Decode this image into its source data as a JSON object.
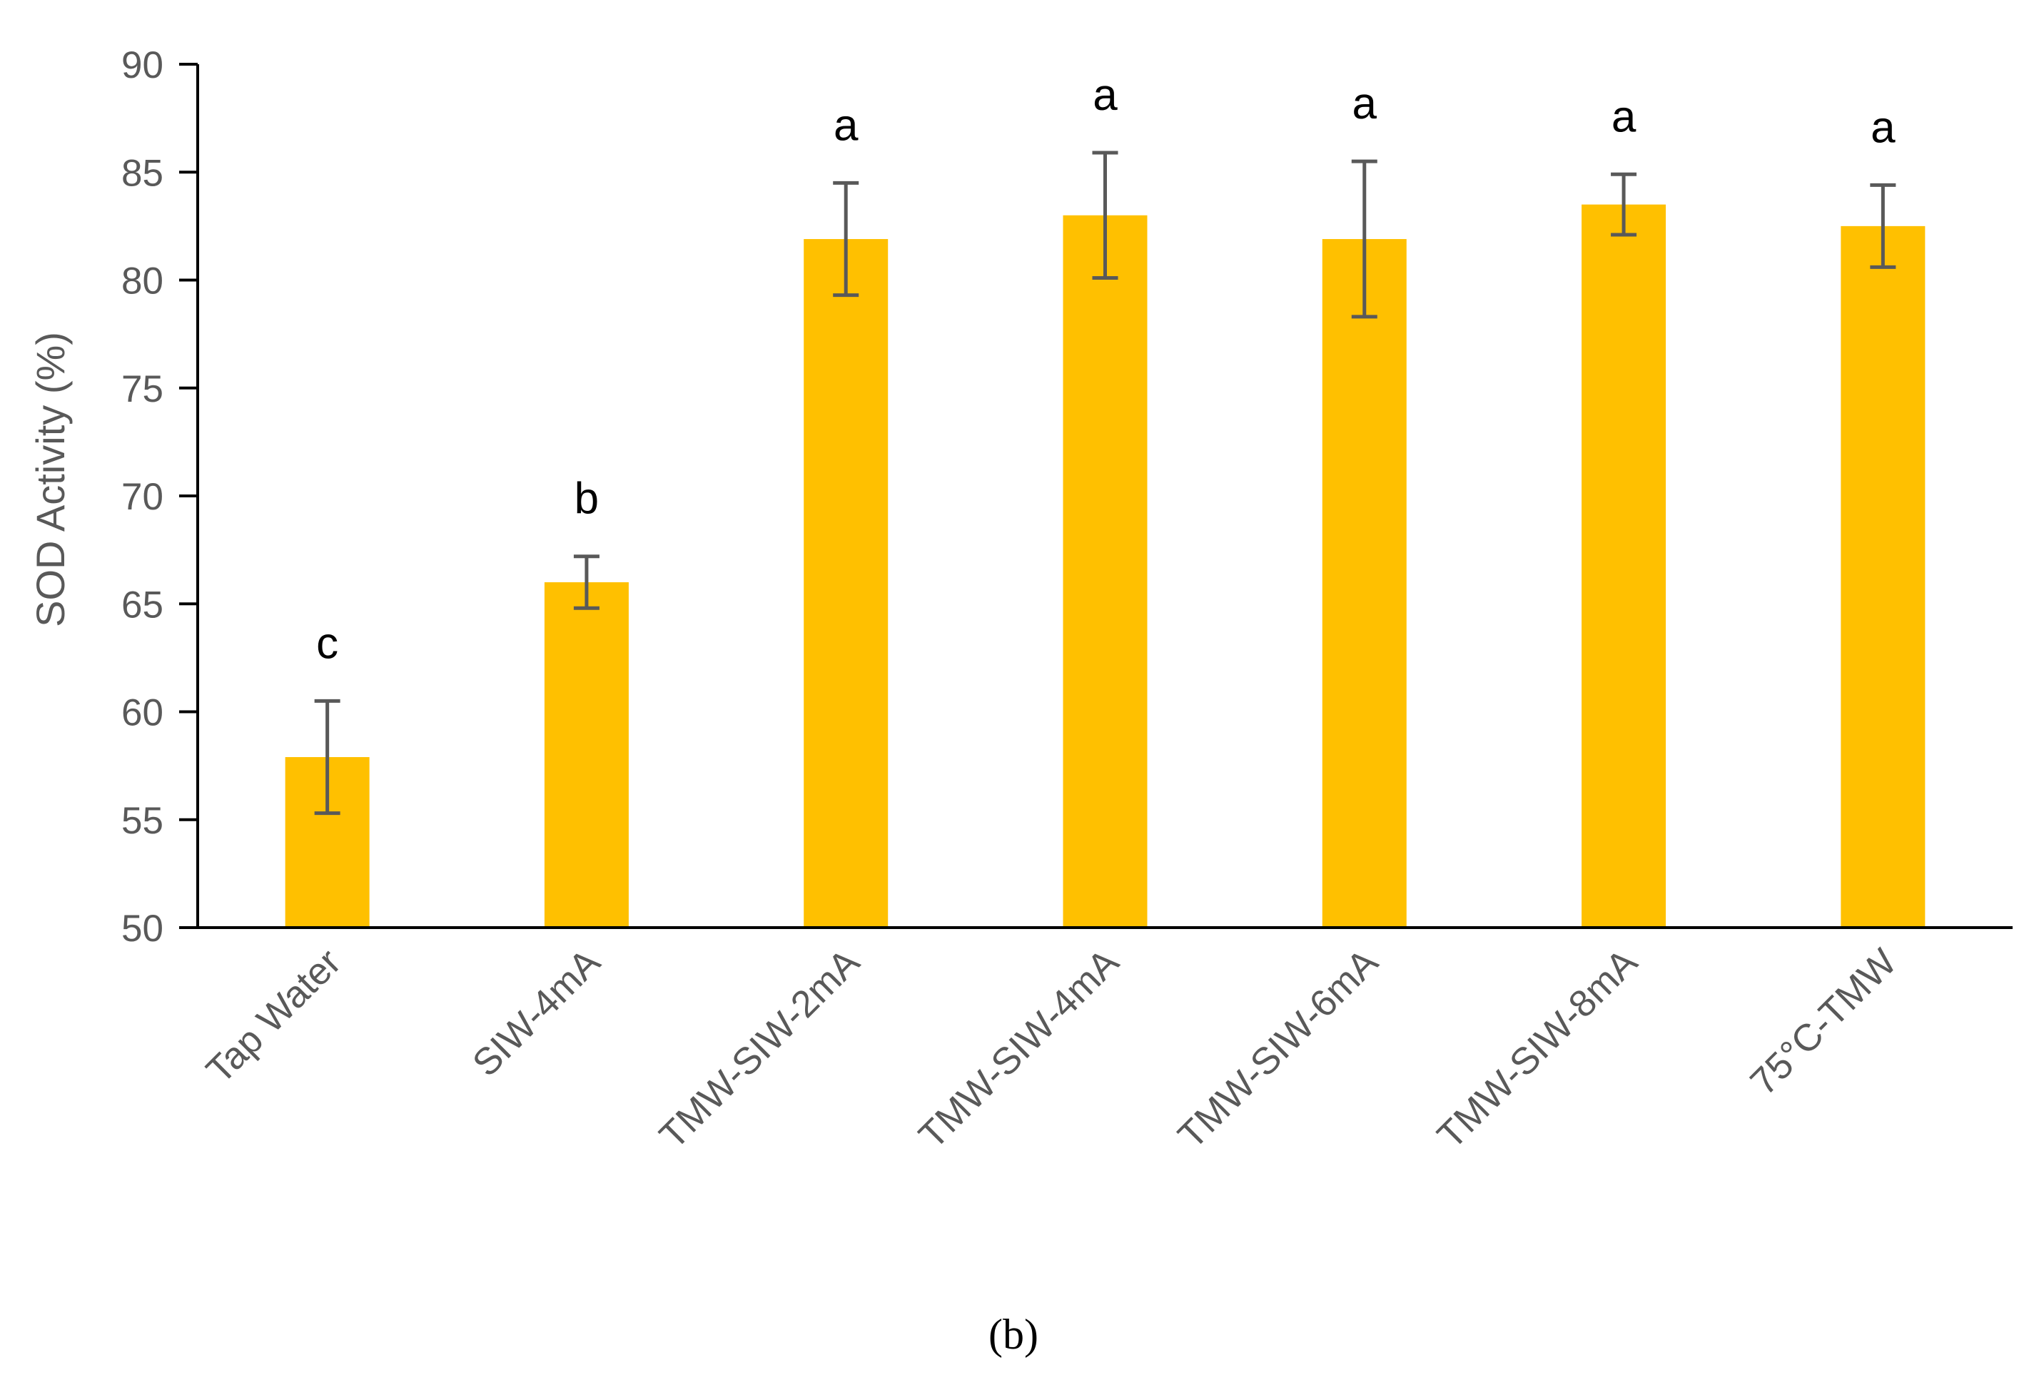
{
  "chart_data": {
    "type": "bar",
    "title": "",
    "xlabel": "",
    "ylabel": "SOD Activity (%)",
    "ylim": [
      50,
      90
    ],
    "yticks": [
      50,
      55,
      60,
      65,
      70,
      75,
      80,
      85,
      90
    ],
    "grid": false,
    "legend": "none",
    "categories": [
      "Tap Water",
      "SIW-4mA",
      "TMW-SIW-2mA",
      "TMW-SIW-4mA",
      "TMW-SIW-6mA",
      "TMW-SIW-8mA",
      "75°C-TMW"
    ],
    "series": [
      {
        "name": "SOD Activity",
        "color": "#FFC000",
        "values": [
          57.9,
          66.0,
          81.9,
          83.0,
          81.9,
          83.5,
          82.5
        ],
        "errors": [
          2.6,
          1.2,
          2.6,
          2.9,
          3.6,
          1.4,
          1.9
        ]
      }
    ],
    "significance_letters": [
      "c",
      "b",
      "a",
      "a",
      "a",
      "a",
      "a"
    ],
    "panel_label": "(b)",
    "colors": {
      "bar": "#FFC000",
      "axis": "#000000",
      "error_bar": "#595959",
      "tick_text": "#595959"
    }
  }
}
